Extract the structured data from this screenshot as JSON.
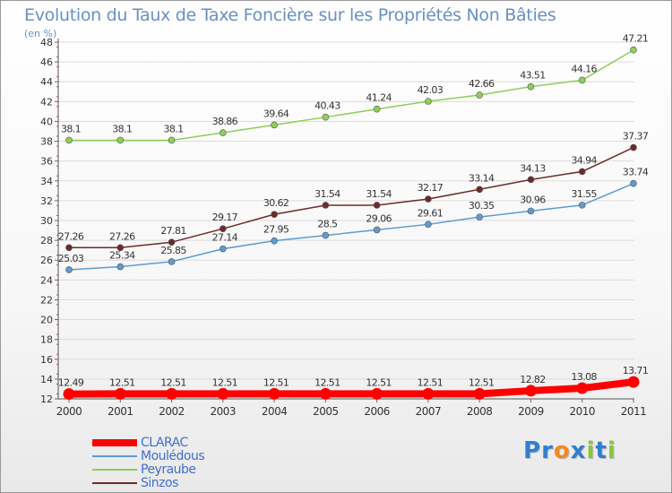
{
  "title": "Evolution du Taux de Taxe Foncière sur les Propriétés Non Bâties",
  "unit_label": "(en %)",
  "chart_data": {
    "type": "line",
    "title": "Evolution du Taux de Taxe Foncière sur les Propriétés Non Bâties",
    "ylabel": "(en %)",
    "xlabel": "",
    "x": [
      "2000",
      "2001",
      "2002",
      "2003",
      "2004",
      "2005",
      "2006",
      "2007",
      "2008",
      "2009",
      "2010",
      "2011"
    ],
    "ylim": [
      12,
      48
    ],
    "yticks": [
      "12",
      "14",
      "16",
      "18",
      "20",
      "22",
      "24",
      "26",
      "28",
      "30",
      "32",
      "34",
      "36",
      "38",
      "40",
      "42",
      "44",
      "46",
      "48"
    ],
    "grid": "horizontal",
    "legend_position": "bottom-left",
    "series": [
      {
        "name": "CLARAC",
        "color": "#ff0000",
        "emphasis": true,
        "values": [
          12.49,
          12.51,
          12.51,
          12.51,
          12.51,
          12.51,
          12.51,
          12.51,
          12.51,
          12.82,
          13.08,
          13.71
        ],
        "labels": [
          "12.49",
          "12.51",
          "12.51",
          "12.51",
          "12.51",
          "12.51",
          "12.51",
          "12.51",
          "12.51",
          "12.82",
          "13.08",
          "13.71"
        ]
      },
      {
        "name": "Moulédous",
        "color": "#5f9bd1",
        "values": [
          25.03,
          25.34,
          25.85,
          27.14,
          27.95,
          28.5,
          29.06,
          29.61,
          30.35,
          30.96,
          31.55,
          33.74
        ],
        "labels": [
          "25.03",
          "25.34",
          "25.85",
          "27.14",
          "27.95",
          "28.5",
          "29.06",
          "29.61",
          "30.35",
          "30.96",
          "31.55",
          "33.74"
        ]
      },
      {
        "name": "Peyraube",
        "color": "#8ecf57",
        "values": [
          38.1,
          38.1,
          38.1,
          38.86,
          39.64,
          40.43,
          41.24,
          42.03,
          42.66,
          43.51,
          44.16,
          47.21
        ],
        "labels": [
          "38.1",
          "38.1",
          "38.1",
          "38.86",
          "39.64",
          "40.43",
          "41.24",
          "42.03",
          "42.66",
          "43.51",
          "44.16",
          "47.21"
        ]
      },
      {
        "name": "Sinzos",
        "color": "#6e2a2a",
        "values": [
          27.26,
          27.26,
          27.81,
          29.17,
          30.62,
          31.54,
          31.54,
          32.17,
          33.14,
          34.13,
          34.94,
          37.37
        ],
        "labels": [
          "27.26",
          "27.26",
          "27.81",
          "29.17",
          "30.62",
          "31.54",
          "31.54",
          "32.17",
          "33.14",
          "34.13",
          "34.94",
          "37.37"
        ]
      }
    ]
  },
  "logo": {
    "letters": [
      {
        "ch": "P",
        "color": "#2f7fd0"
      },
      {
        "ch": "r",
        "color": "#2f7fd0"
      },
      {
        "ch": "o",
        "color": "#f28a1a"
      },
      {
        "ch": "x",
        "color": "#2f7fd0"
      },
      {
        "ch": "i",
        "color": "#8bc53f"
      },
      {
        "ch": "t",
        "color": "#2f7fd0"
      },
      {
        "ch": "i",
        "color": "#8bc53f"
      }
    ]
  }
}
